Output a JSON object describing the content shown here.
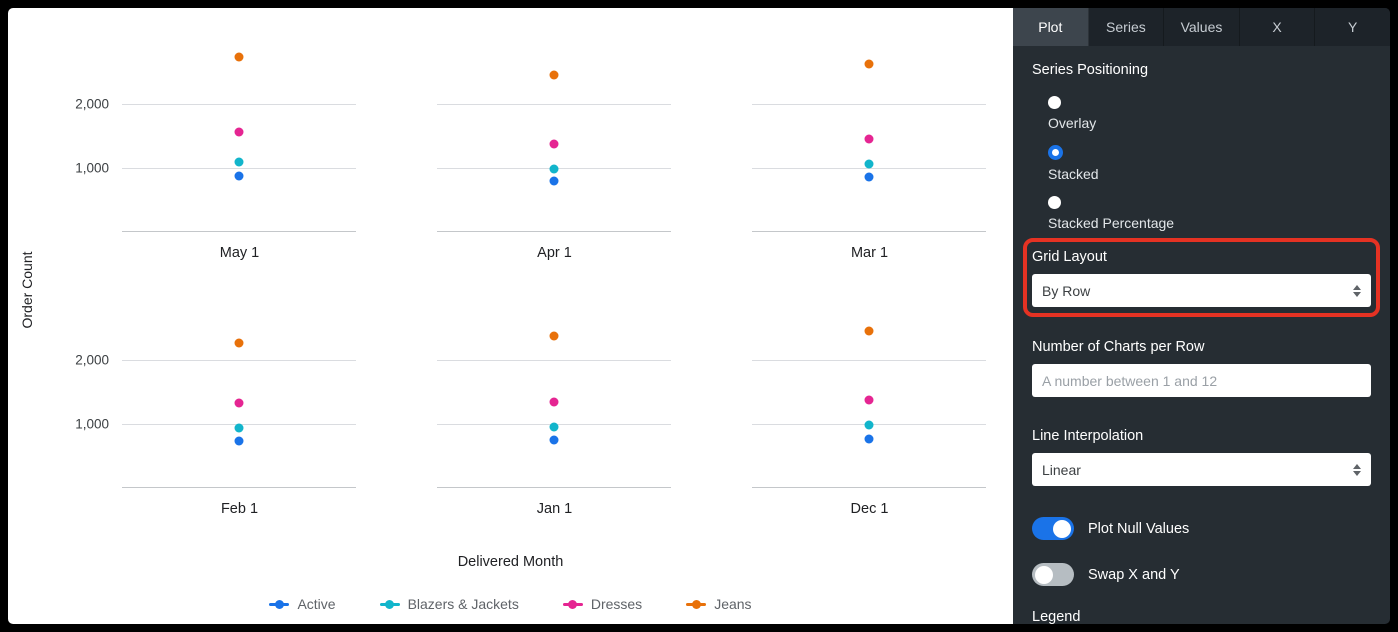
{
  "theme": {
    "accent": "#1A73E8",
    "annotation_red": "#E53223",
    "panel_bg": "#262D33"
  },
  "chart_data": {
    "type": "scatter",
    "ylabel": "Order Count",
    "xlabel": "Delivered Month",
    "ylim": [
      0,
      3000
    ],
    "y_ticks": [
      2000,
      1000
    ],
    "y_tick_labels": [
      "2,000",
      "1,000"
    ],
    "grid_rows": 2,
    "grid_cols": 3,
    "legend_position": "bottom",
    "panels": [
      "May 1",
      "Apr 1",
      "Mar 1",
      "Feb 1",
      "Jan 1",
      "Dec 1"
    ],
    "series": [
      {
        "name": "Active",
        "color": "#1A73E8",
        "values": [
          870,
          790,
          860,
          740,
          750,
          770
        ]
      },
      {
        "name": "Blazers & Jackets",
        "color": "#12B5CB",
        "values": [
          1090,
          990,
          1060,
          930,
          960,
          980
        ]
      },
      {
        "name": "Dresses",
        "color": "#E52592",
        "values": [
          1560,
          1380,
          1450,
          1330,
          1350,
          1380
        ]
      },
      {
        "name": "Jeans",
        "color": "#E8710A",
        "values": [
          2730,
          2450,
          2620,
          2260,
          2380,
          2450
        ]
      }
    ]
  },
  "panel": {
    "tabs": [
      {
        "label": "Plot",
        "active": true
      },
      {
        "label": "Series",
        "active": false
      },
      {
        "label": "Values",
        "active": false
      },
      {
        "label": "X",
        "active": false
      },
      {
        "label": "Y",
        "active": false
      }
    ],
    "series_positioning": {
      "heading": "Series Positioning",
      "options": [
        {
          "label": "Overlay",
          "selected": false
        },
        {
          "label": "Stacked",
          "selected": true
        },
        {
          "label": "Stacked Percentage",
          "selected": false
        }
      ]
    },
    "grid_layout": {
      "label": "Grid Layout",
      "value": "By Row"
    },
    "charts_per_row": {
      "label": "Number of Charts per Row",
      "placeholder": "A number between 1 and 12"
    },
    "line_interpolation": {
      "label": "Line Interpolation",
      "value": "Linear"
    },
    "toggles": [
      {
        "label": "Plot Null Values",
        "on": true
      },
      {
        "label": "Swap X and Y",
        "on": false
      }
    ],
    "legend_heading": "Legend"
  }
}
